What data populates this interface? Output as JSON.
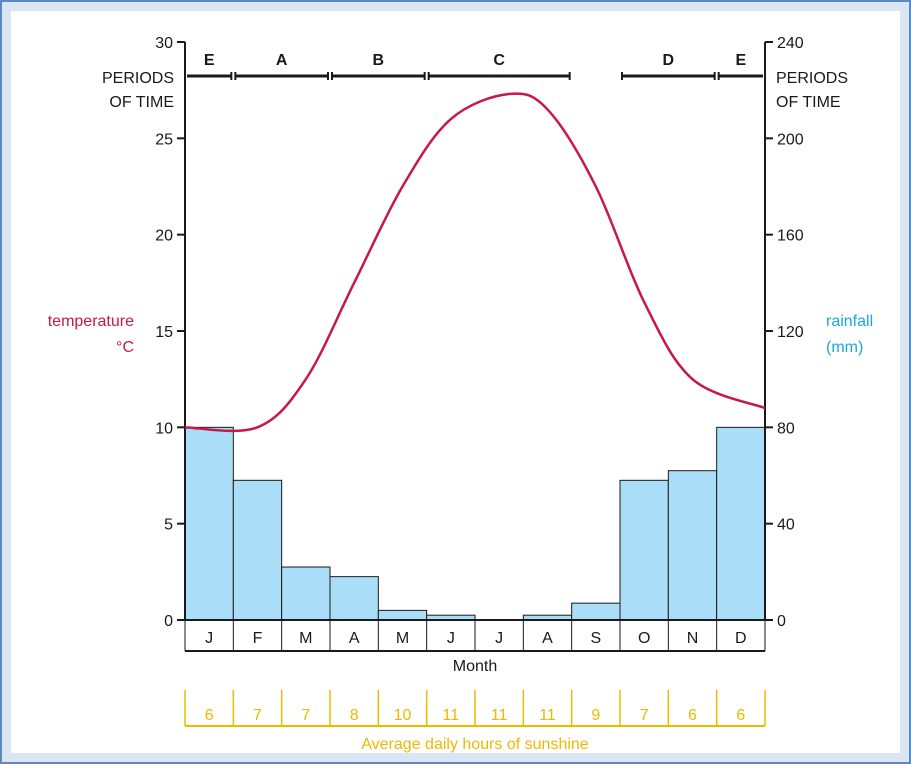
{
  "chart_data": {
    "type": "bar+line (climate graph)",
    "months": [
      "J",
      "F",
      "M",
      "A",
      "M",
      "J",
      "J",
      "A",
      "S",
      "O",
      "N",
      "D"
    ],
    "x_axis_label": "Month",
    "rainfall": {
      "label": "rainfall\n(mm)",
      "label_line1": "rainfall",
      "label_line2": "(mm)",
      "color": "#aaddf7",
      "values_mm": [
        80,
        58,
        22,
        18,
        4,
        2,
        0,
        2,
        7,
        58,
        62,
        80
      ],
      "ylim": [
        0,
        240
      ],
      "ticks": [
        0,
        40,
        80,
        120,
        160,
        200,
        240
      ]
    },
    "temperature": {
      "label_line1": "temperature",
      "label_line2": "°C",
      "color": "#c8174a",
      "points": [
        {
          "month_pos": 0.0,
          "value": 10.0
        },
        {
          "month_pos": 1.5,
          "value": 10.0
        },
        {
          "month_pos": 2.5,
          "value": 12.5
        },
        {
          "month_pos": 3.5,
          "value": 17.5
        },
        {
          "month_pos": 4.5,
          "value": 22.5
        },
        {
          "month_pos": 5.5,
          "value": 26.0
        },
        {
          "month_pos": 6.7,
          "value": 27.3
        },
        {
          "month_pos": 7.5,
          "value": 26.5
        },
        {
          "month_pos": 8.5,
          "value": 22.5
        },
        {
          "month_pos": 9.5,
          "value": 16.5
        },
        {
          "month_pos": 10.5,
          "value": 12.5
        },
        {
          "month_pos": 12.0,
          "value": 11.0
        }
      ],
      "ylim": [
        0,
        30
      ],
      "ticks": [
        0,
        5,
        10,
        15,
        20,
        25,
        30
      ]
    },
    "periods": {
      "label_left_line1": "PERIODS",
      "label_left_line2": "OF TIME",
      "label_right_line1": "PERIODS",
      "label_right_line2": "OF TIME",
      "segments": [
        {
          "letter": "E",
          "start": 0,
          "end": 1
        },
        {
          "letter": "A",
          "start": 1,
          "end": 3
        },
        {
          "letter": "B",
          "start": 3,
          "end": 5
        },
        {
          "letter": "C",
          "start": 5,
          "end": 8
        },
        {
          "letter": "D",
          "start": 9,
          "end": 11
        },
        {
          "letter": "E",
          "start": 11,
          "end": 12
        }
      ]
    },
    "sunshine": {
      "label": "Average daily hours of sunshine",
      "color": "#f0b800",
      "values": [
        "6",
        "7",
        "7",
        "8",
        "10",
        "11",
        "11",
        "11",
        "9",
        "7",
        "6",
        "6"
      ]
    }
  }
}
